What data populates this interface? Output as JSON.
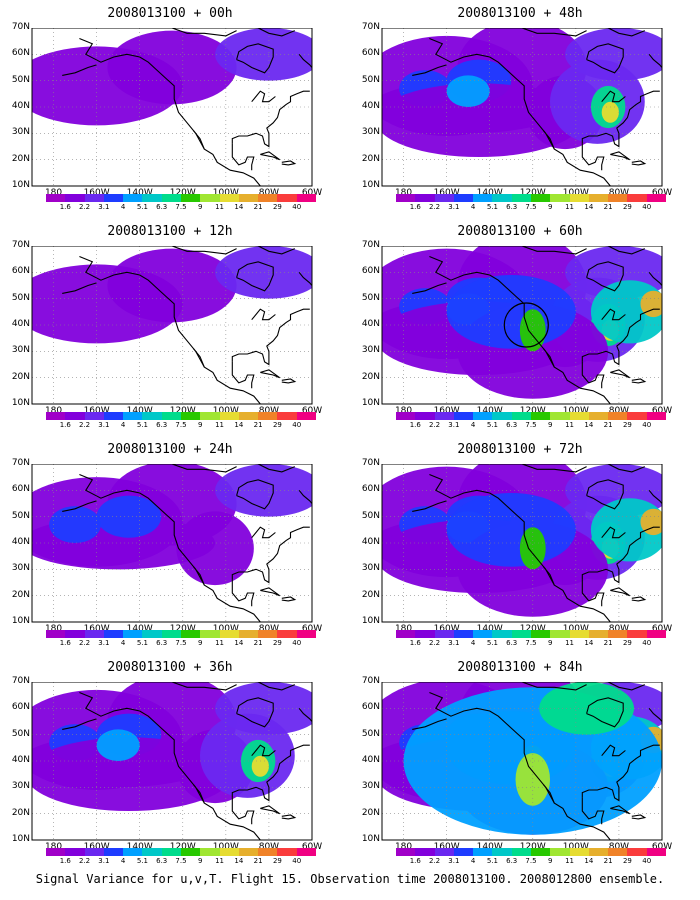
{
  "panels": [
    {
      "title": "2008013100 + 00h",
      "level": 1,
      "circle": false
    },
    {
      "title": "2008013100 + 12h",
      "level": 1,
      "circle": false
    },
    {
      "title": "2008013100 + 24h",
      "level": 2,
      "circle": false
    },
    {
      "title": "2008013100 + 36h",
      "level": 3,
      "circle": false
    },
    {
      "title": "2008013100 + 48h",
      "level": 3,
      "circle": false
    },
    {
      "title": "2008013100 + 60h",
      "level": 4,
      "circle": true
    },
    {
      "title": "2008013100 + 72h",
      "level": 4,
      "circle": false
    },
    {
      "title": "2008013100 + 84h",
      "level": 5,
      "circle": false
    }
  ],
  "axes": {
    "lat_labels": [
      "70N",
      "60N",
      "50N",
      "40N",
      "30N",
      "20N",
      "10N"
    ],
    "lon_labels": [
      "180",
      "160W",
      "140W",
      "120W",
      "100W",
      "80W",
      "60W"
    ]
  },
  "colorbar": {
    "labels": [
      "1.6",
      "2.2",
      "3.1",
      "4",
      "5.1",
      "6.3",
      "7.5",
      "9",
      "11",
      "14",
      "21",
      "29",
      "40"
    ],
    "colors": [
      "#a000c8",
      "#8200dc",
      "#6a28f0",
      "#1e3cff",
      "#00a0ff",
      "#00c8c8",
      "#00dc8c",
      "#28c800",
      "#a0e632",
      "#e6dc32",
      "#e6af2d",
      "#f08228",
      "#fa3c3c",
      "#f00082"
    ]
  },
  "caption": "Signal Variance for u,v,T. Flight 15. Observation time 2008013100. 2008012800 ensemble."
}
